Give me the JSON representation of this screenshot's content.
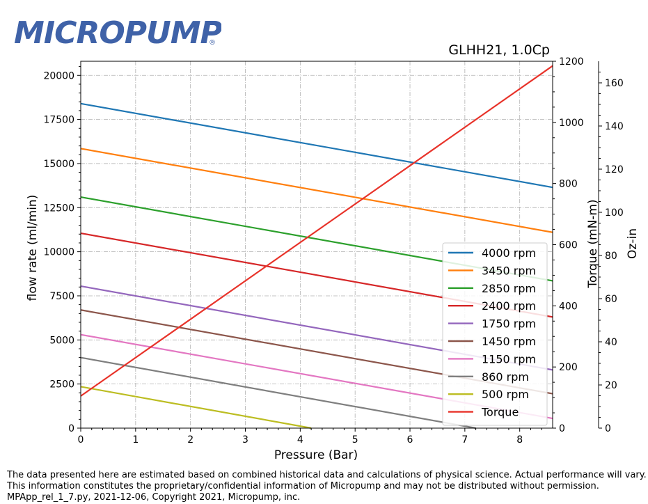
{
  "logo": {
    "text": "MICROPUMP",
    "registered": "®",
    "color": "#3f62a8"
  },
  "chart_data": {
    "type": "line",
    "title": "GLHH21,  1.0Cp",
    "xlabel": "Pressure (Bar)",
    "ylabel": "flow rate (ml/min)",
    "y2label": "Torque (mN-m)",
    "y3label": "Oz-in",
    "xlim": [
      0,
      8.6
    ],
    "ylim": [
      0,
      20800
    ],
    "y2lim": [
      0,
      1200
    ],
    "y3lim": [
      0,
      170
    ],
    "xticks": [
      0,
      1,
      2,
      3,
      4,
      5,
      6,
      7,
      8
    ],
    "yticks": [
      0,
      2500,
      5000,
      7500,
      10000,
      12500,
      15000,
      17500,
      20000
    ],
    "y2ticks": [
      0,
      200,
      400,
      600,
      800,
      1000,
      1200
    ],
    "y3ticks": [
      0,
      20,
      40,
      60,
      80,
      100,
      120,
      140,
      160
    ],
    "grid": true,
    "legend_position": "lower-right",
    "series": [
      {
        "name": "4000 rpm",
        "color": "#1f77b4",
        "axis": "flow",
        "x": [
          0,
          8.6
        ],
        "y": [
          18400,
          13650
        ]
      },
      {
        "name": "3450 rpm",
        "color": "#ff7f0e",
        "axis": "flow",
        "x": [
          0,
          8.6
        ],
        "y": [
          15850,
          11100
        ]
      },
      {
        "name": "2850 rpm",
        "color": "#2ca02c",
        "axis": "flow",
        "x": [
          0,
          8.6
        ],
        "y": [
          13100,
          8350
        ]
      },
      {
        "name": "2400 rpm",
        "color": "#d62728",
        "axis": "flow",
        "x": [
          0,
          8.6
        ],
        "y": [
          11050,
          6300
        ]
      },
      {
        "name": "1750 rpm",
        "color": "#9467bd",
        "axis": "flow",
        "x": [
          0,
          8.6
        ],
        "y": [
          8050,
          3300
        ]
      },
      {
        "name": "1450 rpm",
        "color": "#8c564b",
        "axis": "flow",
        "x": [
          0,
          8.6
        ],
        "y": [
          6700,
          1950
        ]
      },
      {
        "name": "1150 rpm",
        "color": "#e377c2",
        "axis": "flow",
        "x": [
          0,
          8.6
        ],
        "y": [
          5300,
          550
        ]
      },
      {
        "name": "860 rpm",
        "color": "#7f7f7f",
        "axis": "flow",
        "x": [
          0,
          7.2
        ],
        "y": [
          4000,
          0
        ]
      },
      {
        "name": "500 rpm",
        "color": "#bcbd22",
        "axis": "flow",
        "x": [
          0,
          4.2
        ],
        "y": [
          2350,
          0
        ]
      },
      {
        "name": "Torque",
        "color": "#e8332a",
        "axis": "torque",
        "x": [
          0,
          8.6
        ],
        "y": [
          105,
          1185
        ]
      }
    ]
  },
  "footer": {
    "line1": "The data presented here are estimated based on combined historical data and calculations of physical science.  Actual performance will vary.",
    "line2": "This information constitutes the proprietary/confidential information of Micropump and may not be distributed without permission.",
    "line3": "MPApp_rel_1_7.py, 2021-12-06, Copyright 2021, Micropump, inc."
  }
}
